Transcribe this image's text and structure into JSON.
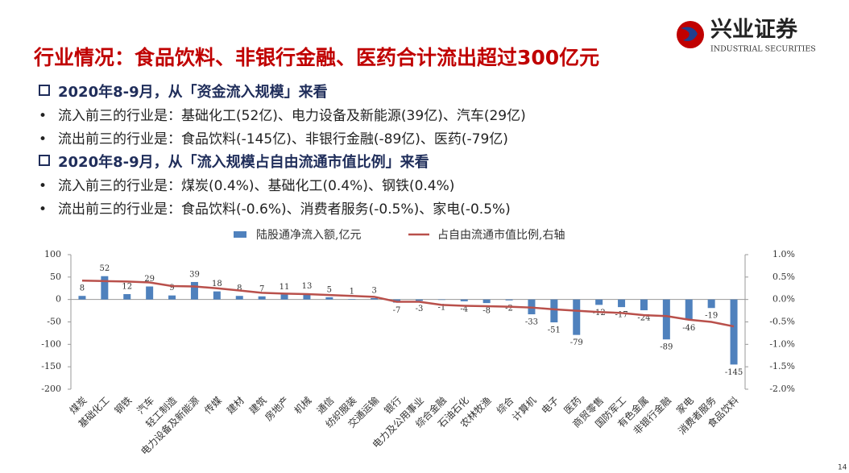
{
  "header": {
    "title": "行业情况：食品饮料、非银行金融、医药合计流出超过300亿元",
    "logo_cn": "兴业证券",
    "logo_en": "INDUSTRIAL SECURITIES"
  },
  "sections": [
    {
      "heading": "2020年8-9月，从「资金流入规模」来看",
      "bullets": [
        "流入前三的行业是：基础化工(52亿)、电力设备及新能源(39亿)、汽车(29亿)",
        "流出前三的行业是：食品饮料(-145亿)、非银行金融(-89亿)、医药(-79亿)"
      ]
    },
    {
      "heading": "2020年8-9月，从「流入规模占自由流通市值比例」来看",
      "bullets": [
        "流入前三的行业是：煤炭(0.4%)、基础化工(0.4%)、钢铁(0.4%)",
        "流出前三的行业是：食品饮料(-0.6%)、消费者服务(-0.5%)、家电(-0.5%)"
      ]
    }
  ],
  "chart_data": {
    "type": "bar",
    "categories": [
      "煤炭",
      "基础化工",
      "钢铁",
      "汽车",
      "轻工制造",
      "电力设备及新能源",
      "传媒",
      "建材",
      "建筑",
      "房地产",
      "机械",
      "通信",
      "纺织服装",
      "交通运输",
      "银行",
      "电力及公用事业",
      "综合金融",
      "石油石化",
      "农林牧渔",
      "综合",
      "计算机",
      "电子",
      "医药",
      "商贸零售",
      "国防军工",
      "有色金属",
      "非银行金融",
      "家电",
      "消费者服务",
      "食品饮料"
    ],
    "series": [
      {
        "name": "陆股通净流入额,亿元",
        "type": "bar",
        "color": "#4f81bd",
        "values": [
          8,
          52,
          12,
          29,
          9,
          39,
          18,
          8,
          7,
          11,
          13,
          5,
          1,
          3,
          -7,
          -3,
          -1,
          -4,
          -8,
          -2,
          -33,
          -51,
          -79,
          -12,
          -17,
          -24,
          -89,
          -46,
          -19,
          -145
        ]
      },
      {
        "name": "占自由流通市值比例,右轴",
        "type": "line",
        "axis": "y2",
        "color": "#b9504b",
        "values": [
          0.42,
          0.41,
          0.4,
          0.38,
          0.3,
          0.29,
          0.25,
          0.2,
          0.15,
          0.13,
          0.12,
          0.1,
          0.08,
          0.06,
          -0.05,
          -0.05,
          -0.12,
          -0.14,
          -0.15,
          -0.16,
          -0.18,
          -0.22,
          -0.25,
          -0.28,
          -0.3,
          -0.35,
          -0.37,
          -0.45,
          -0.5,
          -0.6
        ]
      }
    ],
    "ylim": [
      -200,
      100
    ],
    "yticks": [
      100,
      50,
      0,
      -50,
      -100,
      -150,
      -200
    ],
    "y2lim": [
      -2.0,
      1.0
    ],
    "y2ticks": [
      {
        "value": 1.0,
        "label": "1.0%"
      },
      {
        "value": 0.5,
        "label": "0.5%"
      },
      {
        "value": 0,
        "label": "0.0%"
      },
      {
        "value": -0.5,
        "label": "-0.5%"
      },
      {
        "value": -1.0,
        "label": "-1.0%"
      },
      {
        "value": -1.5,
        "label": "-1.5%"
      },
      {
        "value": -2.0,
        "label": "-2.0%"
      }
    ],
    "legend": "top"
  },
  "page_number": "14"
}
